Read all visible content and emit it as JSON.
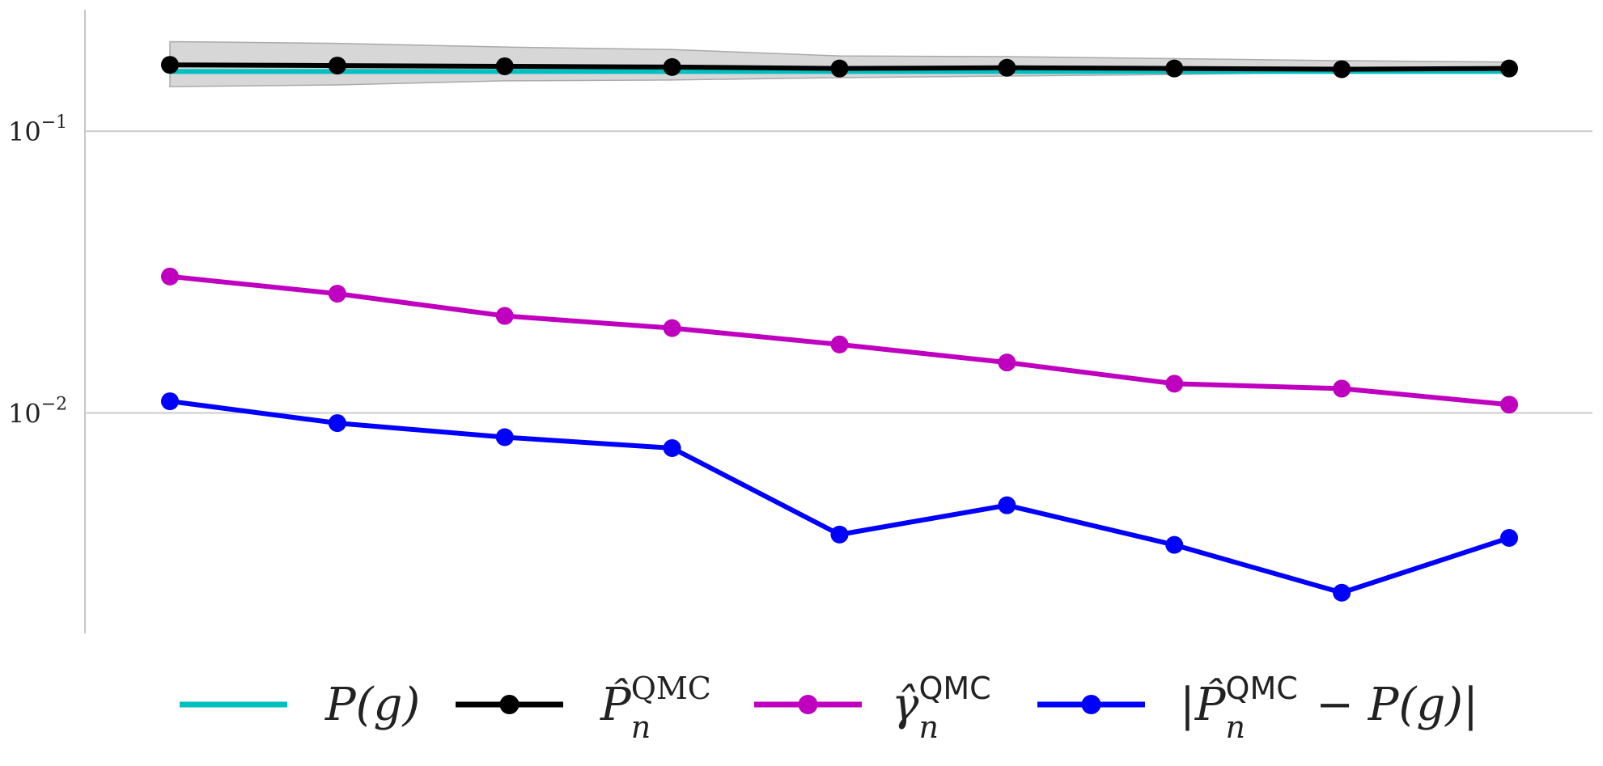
{
  "chart_data": {
    "type": "line",
    "title": "",
    "xlabel": "",
    "ylabel": "",
    "yscale": "log",
    "ylim": [
      0.00165,
      0.27
    ],
    "grid": "horizontal",
    "legend_placement": "bottom",
    "x": [
      1,
      2,
      3,
      4,
      5,
      6,
      7,
      8,
      9
    ],
    "yticks": [
      {
        "value": 0.1,
        "base": "10",
        "exponent": "−1"
      },
      {
        "value": 0.01,
        "base": "10",
        "exponent": "−2"
      }
    ],
    "band": {
      "series": "hat_P",
      "upper": [
        0.208,
        0.205,
        0.199,
        0.195,
        0.185,
        0.184,
        0.181,
        0.178,
        0.176
      ],
      "lower": [
        0.144,
        0.146,
        0.151,
        0.152,
        0.155,
        0.157,
        0.159,
        0.162,
        0.164
      ]
    },
    "series": [
      {
        "key": "P",
        "legend": {
          "main": "P(g)"
        },
        "color": "#00bfbf",
        "marker": false,
        "values": [
          0.163,
          0.163,
          0.163,
          0.163,
          0.163,
          0.163,
          0.163,
          0.163,
          0.163
        ]
      },
      {
        "key": "hat_P",
        "legend": {
          "main": "P̂",
          "sub": "n",
          "sup": "QMC"
        },
        "color": "#000000",
        "marker": true,
        "values": [
          0.172,
          0.171,
          0.17,
          0.169,
          0.167,
          0.168,
          0.167,
          0.166,
          0.167
        ]
      },
      {
        "key": "gamma",
        "legend": {
          "main": "γ̂",
          "sub": "n",
          "sup": "QMC"
        },
        "color": "#bf00bf",
        "marker": true,
        "values": [
          0.0305,
          0.0265,
          0.0221,
          0.02,
          0.0175,
          0.0151,
          0.0127,
          0.0122,
          0.0107
        ]
      },
      {
        "key": "err",
        "legend": {
          "pre": "|P̂",
          "sub": "n",
          "sup": "QMC",
          "post": " − P(g)|"
        },
        "color": "#0000ff",
        "marker": true,
        "values": [
          0.011,
          0.0092,
          0.0082,
          0.0075,
          0.0037,
          0.0047,
          0.0034,
          0.0023,
          0.0036
        ]
      }
    ]
  }
}
